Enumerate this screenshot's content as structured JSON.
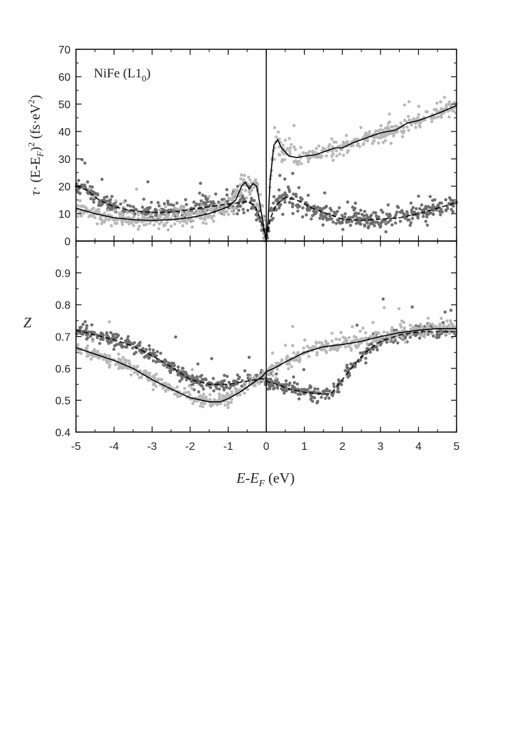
{
  "colors": {
    "light_scatter": "#b8b8b8",
    "dark_scatter": "#6e6e6e",
    "line": "#000000",
    "axis": "#000000",
    "background": "#ffffff"
  },
  "label": {
    "material": "NiFe (L1",
    "material_sub": "0",
    "material_close": ")"
  },
  "xlabel": {
    "main": "E-E",
    "sub": "F",
    "unit": " (eV)"
  },
  "top_ylabel": {
    "tau": "τ",
    "dot": "· (E-E",
    "sub": "F",
    "close": ")",
    "sup": "2",
    "unit": " (fs·eV",
    "unit_sup": "2",
    "unit_close": ")"
  },
  "bottom_ylabel": "Z",
  "chart_data": [
    {
      "type": "scatter",
      "panel": "top",
      "xlim": [
        -5,
        5
      ],
      "ylim": [
        0,
        70
      ],
      "x_ticks": [
        "-5",
        "-4",
        "-3",
        "-2",
        "-1",
        "0",
        "1",
        "2",
        "3",
        "4",
        "5"
      ],
      "y_ticks": [
        "0",
        "10",
        "20",
        "30",
        "40",
        "50",
        "60",
        "70"
      ],
      "series": [
        {
          "style": "light-scatter-solid-line",
          "line": "solid",
          "curve": [
            [
              -5,
              12
            ],
            [
              -4.5,
              10
            ],
            [
              -4,
              8.5
            ],
            [
              -3.5,
              7.8
            ],
            [
              -3,
              7.5
            ],
            [
              -2.5,
              7.8
            ],
            [
              -2,
              8.5
            ],
            [
              -1.5,
              10
            ],
            [
              -1.0,
              12.5
            ],
            [
              -0.8,
              15
            ],
            [
              -0.65,
              20
            ],
            [
              -0.55,
              21.5
            ],
            [
              -0.45,
              19
            ],
            [
              -0.35,
              21
            ],
            [
              -0.25,
              20
            ],
            [
              -0.15,
              12
            ],
            [
              -0.05,
              4
            ],
            [
              0,
              0
            ],
            [
              0.05,
              8
            ],
            [
              0.1,
              22
            ],
            [
              0.2,
              35
            ],
            [
              0.3,
              37
            ],
            [
              0.4,
              34
            ],
            [
              0.6,
              31
            ],
            [
              0.8,
              30.5
            ],
            [
              1.0,
              31
            ],
            [
              1.3,
              31.5
            ],
            [
              1.6,
              33
            ],
            [
              1.8,
              34
            ],
            [
              2.0,
              34
            ],
            [
              2.3,
              36
            ],
            [
              2.6,
              37.5
            ],
            [
              3.0,
              39.5
            ],
            [
              3.4,
              40.5
            ],
            [
              3.7,
              43
            ],
            [
              4.0,
              44
            ],
            [
              4.5,
              46.5
            ],
            [
              5.0,
              49.5
            ]
          ]
        },
        {
          "style": "dark-scatter-dashed-line",
          "line": "dashed",
          "curve": [
            [
              -5,
              20
            ],
            [
              -4.7,
              18.5
            ],
            [
              -4.4,
              15
            ],
            [
              -4,
              12.5
            ],
            [
              -3.5,
              11
            ],
            [
              -3,
              10.5
            ],
            [
              -2.5,
              10.5
            ],
            [
              -2,
              11.5
            ],
            [
              -1.5,
              12.5
            ],
            [
              -1.0,
              13.5
            ],
            [
              -0.7,
              14
            ],
            [
              -0.5,
              14.5
            ],
            [
              -0.3,
              13
            ],
            [
              -0.15,
              8
            ],
            [
              0,
              0
            ],
            [
              0.1,
              8
            ],
            [
              0.25,
              13
            ],
            [
              0.5,
              16
            ],
            [
              0.8,
              15
            ],
            [
              1.2,
              12
            ],
            [
              1.6,
              10
            ],
            [
              2.0,
              8
            ],
            [
              2.5,
              7.5
            ],
            [
              3.0,
              8
            ],
            [
              3.5,
              8.5
            ],
            [
              4.0,
              10
            ],
            [
              4.5,
              12
            ],
            [
              5.0,
              14
            ]
          ]
        }
      ]
    },
    {
      "type": "scatter",
      "panel": "bottom",
      "xlim": [
        -5,
        5
      ],
      "ylim": [
        0.4,
        1.0
      ],
      "x_ticks": [
        "-5",
        "-4",
        "-3",
        "-2",
        "-1",
        "0",
        "1",
        "2",
        "3",
        "4",
        "5"
      ],
      "y_ticks": [
        "0.4",
        "0.5",
        "0.6",
        "0.7",
        "0.8",
        "0.9"
      ],
      "series": [
        {
          "style": "light-scatter-solid-line",
          "line": "solid",
          "curve": [
            [
              -5,
              0.665
            ],
            [
              -4.5,
              0.645
            ],
            [
              -4,
              0.625
            ],
            [
              -3.5,
              0.6
            ],
            [
              -3,
              0.565
            ],
            [
              -2.5,
              0.535
            ],
            [
              -2,
              0.508
            ],
            [
              -1.5,
              0.495
            ],
            [
              -1.2,
              0.495
            ],
            [
              -1.0,
              0.505
            ],
            [
              -0.7,
              0.525
            ],
            [
              -0.4,
              0.55
            ],
            [
              -0.1,
              0.575
            ],
            [
              0.0,
              0.59
            ],
            [
              0.2,
              0.6
            ],
            [
              0.5,
              0.62
            ],
            [
              1.0,
              0.65
            ],
            [
              1.5,
              0.668
            ],
            [
              2.0,
              0.675
            ],
            [
              2.5,
              0.685
            ],
            [
              3.0,
              0.7
            ],
            [
              3.5,
              0.712
            ],
            [
              4.0,
              0.72
            ],
            [
              4.5,
              0.725
            ],
            [
              5.0,
              0.725
            ]
          ]
        },
        {
          "style": "dark-scatter-dashed-line",
          "line": "dashed",
          "curve": [
            [
              -5,
              0.72
            ],
            [
              -4.5,
              0.705
            ],
            [
              -4,
              0.69
            ],
            [
              -3.5,
              0.67
            ],
            [
              -3,
              0.64
            ],
            [
              -2.5,
              0.605
            ],
            [
              -2,
              0.565
            ],
            [
              -1.5,
              0.55
            ],
            [
              -1.0,
              0.55
            ],
            [
              -0.5,
              0.56
            ],
            [
              -0.1,
              0.568
            ],
            [
              0,
              0.56
            ],
            [
              0.3,
              0.55
            ],
            [
              0.6,
              0.535
            ],
            [
              1.0,
              0.525
            ],
            [
              1.4,
              0.52
            ],
            [
              1.7,
              0.52
            ],
            [
              2.0,
              0.565
            ],
            [
              2.3,
              0.61
            ],
            [
              2.6,
              0.65
            ],
            [
              3.0,
              0.685
            ],
            [
              3.5,
              0.705
            ],
            [
              4.0,
              0.715
            ],
            [
              4.5,
              0.715
            ],
            [
              5.0,
              0.715
            ]
          ]
        }
      ]
    }
  ]
}
